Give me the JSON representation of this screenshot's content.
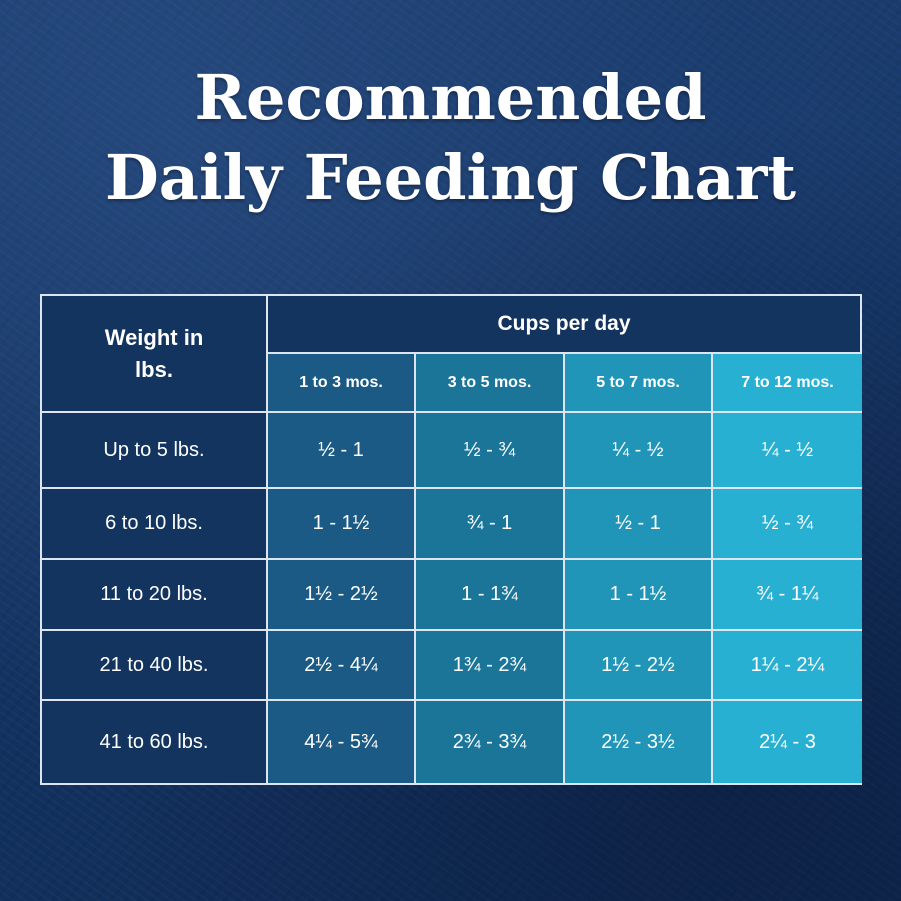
{
  "title": {
    "line1": "Recommended",
    "line2": "Daily Feeding Chart"
  },
  "table": {
    "weight_header": "Weight in lbs.",
    "group_header": "Cups per day",
    "age_columns": [
      "1 to 3 mos.",
      "3 to 5 mos.",
      "5 to 7 mos.",
      "7 to 12 mos."
    ],
    "rows": [
      {
        "weight": "Up to 5 lbs.",
        "values": [
          "½  - 1",
          "½  - ¾",
          "¼  - ½",
          "¼  - ½"
        ]
      },
      {
        "weight": "6 to 10 lbs.",
        "values": [
          "1  - 1½",
          "¾ - 1",
          "½ - 1",
          "½ - ¾"
        ]
      },
      {
        "weight": "11 to 20 lbs.",
        "values": [
          "1½  - 2½",
          "1 - 1¾",
          "1 - 1½",
          "¾ - 1¼"
        ]
      },
      {
        "weight": "21 to 40 lbs.",
        "values": [
          "2½ - 4¼",
          "1¾ - 2¾",
          "1½ - 2½",
          "1¼ - 2¼"
        ]
      },
      {
        "weight": "41 to 60 lbs.",
        "values": [
          "4¼  - 5¾",
          "2¾  - 3¾",
          "2½  - 3½",
          "2¼  - 3"
        ]
      }
    ]
  },
  "colors": {
    "background": "#12305a",
    "header_dark": "#13345f",
    "col1": "#1a5a84",
    "col2": "#1b7599",
    "col3": "#2095b8",
    "col4": "#27b0d1",
    "grid": "#dde6f0"
  }
}
